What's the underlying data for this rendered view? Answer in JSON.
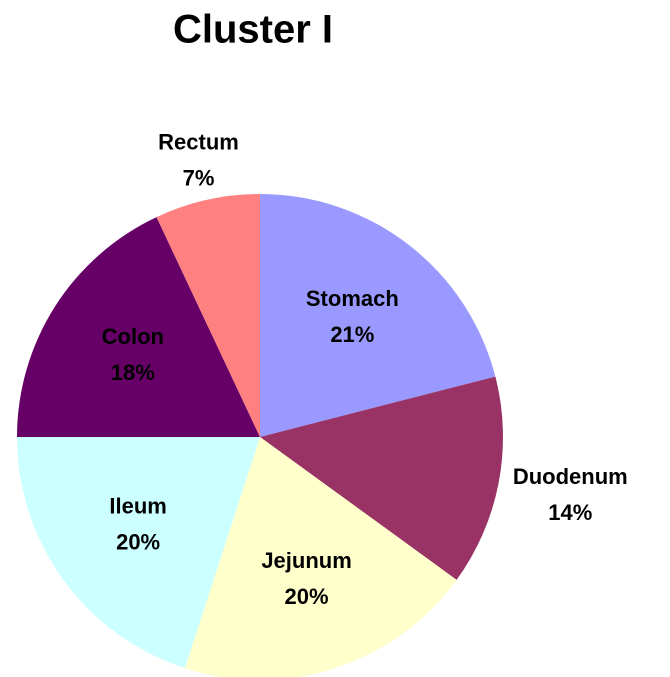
{
  "chart_data": {
    "type": "pie",
    "title": "Cluster I",
    "categories": [
      "Stomach",
      "Duodenum",
      "Jejunum",
      "Ileum",
      "Colon",
      "Rectum"
    ],
    "values": [
      21,
      14,
      20,
      20,
      18,
      7
    ],
    "value_labels": [
      "21%",
      "14%",
      "20%",
      "20%",
      "18%",
      "7%"
    ],
    "colors": [
      "#9999ff",
      "#993366",
      "#ffffcc",
      "#ccffff",
      "#660066",
      "#ff8080"
    ]
  }
}
